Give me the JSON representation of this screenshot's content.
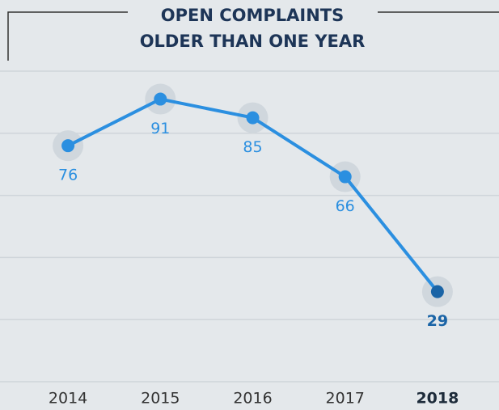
{
  "chart_data": {
    "type": "line",
    "title": [
      "OPEN COMPLAINTS",
      "OLDER THAN ONE YEAR"
    ],
    "categories": [
      "2014",
      "2015",
      "2016",
      "2017",
      "2018"
    ],
    "series": [
      {
        "color": "#2b8fe0",
        "values": [
          76,
          91,
          85,
          66,
          29
        ],
        "point_colors": [
          "#2b8fe0",
          "#2b8fe0",
          "#2b8fe0",
          "#2b8fe0",
          "#1a64a6"
        ]
      }
    ],
    "ylim": [
      0,
      100
    ],
    "yticks": [
      0,
      20,
      40,
      60,
      80,
      100
    ],
    "grid": true
  }
}
